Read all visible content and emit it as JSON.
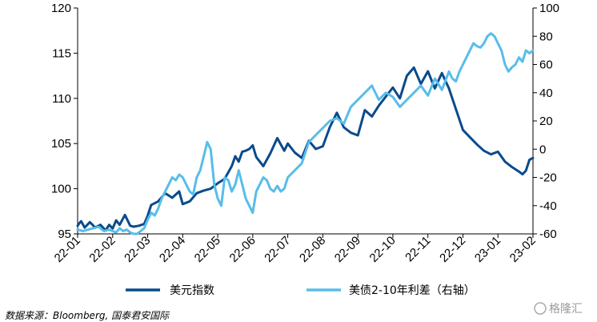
{
  "chart_data": {
    "type": "line",
    "categories": [
      "22-01",
      "22-02",
      "22-03",
      "22-04",
      "22-05",
      "22-06",
      "22-07",
      "22-08",
      "22-09",
      "22-10",
      "22-11",
      "22-12",
      "23-01",
      "23-02"
    ],
    "y_left": {
      "min": 95,
      "max": 120,
      "ticks": [
        "95",
        "100",
        "105",
        "110",
        "115",
        "120"
      ]
    },
    "y_right": {
      "min": -60,
      "max": 100,
      "ticks": [
        "-60",
        "-40",
        "-20",
        "0",
        "20",
        "40",
        "60",
        "80",
        "100"
      ]
    },
    "grid": false,
    "legend_position": "bottom",
    "series": [
      {
        "name": "美元指数",
        "axis": "left",
        "color": "#0b4a8c",
        "x": [
          0,
          0.05,
          0.1,
          0.2,
          0.35,
          0.5,
          0.65,
          0.8,
          0.9,
          1.0,
          1.1,
          1.2,
          1.35,
          1.5,
          1.6,
          1.75,
          1.9,
          2.0,
          2.1,
          2.3,
          2.5,
          2.7,
          2.9,
          3.0,
          3.2,
          3.4,
          3.6,
          3.8,
          4.0,
          4.2,
          4.4,
          4.5,
          4.6,
          4.7,
          4.8,
          4.9,
          5.0,
          5.1,
          5.3,
          5.5,
          5.7,
          5.9,
          6.0,
          6.2,
          6.4,
          6.6,
          6.8,
          7.0,
          7.2,
          7.4,
          7.6,
          7.8,
          8.0,
          8.2,
          8.4,
          8.6,
          8.8,
          9.0,
          9.2,
          9.4,
          9.6,
          9.8,
          10.0,
          10.2,
          10.4,
          10.6,
          10.8,
          11.0,
          11.2,
          11.4,
          11.6,
          11.8,
          12.0,
          12.2,
          12.4,
          12.6,
          12.7,
          12.8,
          12.9,
          13.0
        ],
        "values": [
          95.9,
          96.2,
          96.4,
          95.7,
          96.3,
          95.7,
          96.0,
          95.4,
          96.0,
          95.6,
          96.5,
          96.0,
          97.1,
          95.9,
          95.8,
          95.9,
          96.1,
          97.0,
          98.2,
          98.6,
          99.5,
          99.0,
          99.7,
          98.3,
          98.6,
          99.5,
          99.8,
          100.0,
          100.6,
          101.1,
          102.5,
          103.6,
          103.0,
          104.1,
          104.2,
          104.4,
          104.8,
          103.5,
          102.5,
          103.9,
          105.6,
          104.2,
          105.0,
          104.0,
          103.4,
          105.3,
          104.4,
          104.7,
          106.8,
          108.4,
          106.8,
          106.2,
          105.9,
          108.7,
          108.0,
          109.2,
          110.2,
          111.2,
          110.0,
          112.5,
          113.4,
          111.6,
          113.0,
          111.1,
          112.8,
          111.1,
          108.8,
          106.5,
          105.7,
          104.9,
          104.2,
          103.8,
          104.1,
          103.0,
          102.4,
          101.9,
          101.6,
          102.0,
          103.2,
          103.4
        ]
      },
      {
        "name": "美债2-10年利差（右轴）",
        "axis": "right",
        "color": "#58bde9",
        "x": [
          0,
          0.15,
          0.3,
          0.45,
          0.6,
          0.75,
          0.9,
          1.0,
          1.1,
          1.2,
          1.3,
          1.4,
          1.5,
          1.6,
          1.7,
          1.8,
          1.9,
          2.0,
          2.1,
          2.2,
          2.3,
          2.4,
          2.5,
          2.6,
          2.7,
          2.8,
          2.9,
          3.0,
          3.1,
          3.2,
          3.3,
          3.4,
          3.5,
          3.6,
          3.7,
          3.8,
          3.9,
          4.0,
          4.1,
          4.2,
          4.3,
          4.4,
          4.5,
          4.6,
          4.7,
          4.8,
          4.9,
          5.0,
          5.1,
          5.2,
          5.3,
          5.4,
          5.5,
          5.6,
          5.7,
          5.8,
          5.9,
          6.0,
          6.2,
          6.4,
          6.6,
          6.8,
          7.0,
          7.2,
          7.4,
          7.6,
          7.8,
          8.0,
          8.2,
          8.4,
          8.6,
          8.8,
          9.0,
          9.2,
          9.4,
          9.6,
          9.8,
          10.0,
          10.2,
          10.4,
          10.6,
          10.7,
          10.8,
          10.9,
          11.0,
          11.1,
          11.2,
          11.3,
          11.4,
          11.5,
          11.6,
          11.7,
          11.8,
          11.9,
          12.0,
          12.1,
          12.2,
          12.3,
          12.4,
          12.5,
          12.6,
          12.7,
          12.8,
          12.9,
          13.0
        ],
        "values": [
          -57,
          -58,
          -57,
          -56,
          -55,
          -58,
          -57,
          -58,
          -59,
          -56,
          -58,
          -57,
          -59,
          -60,
          -60,
          -58,
          -56,
          -50,
          -45,
          -47,
          -42,
          -35,
          -30,
          -25,
          -20,
          -22,
          -18,
          -20,
          -25,
          -30,
          -32,
          -20,
          -15,
          -5,
          5,
          0,
          -25,
          -35,
          -40,
          -20,
          -22,
          -30,
          -25,
          -15,
          -25,
          -35,
          -40,
          -45,
          -30,
          -25,
          -20,
          -22,
          -28,
          -30,
          -26,
          -30,
          -28,
          -20,
          -15,
          -10,
          5,
          10,
          15,
          20,
          22,
          18,
          30,
          35,
          40,
          45,
          35,
          40,
          37,
          30,
          35,
          40,
          45,
          38,
          50,
          42,
          55,
          50,
          48,
          55,
          60,
          65,
          70,
          75,
          73,
          72,
          75,
          80,
          82,
          80,
          75,
          70,
          60,
          55,
          58,
          60,
          65,
          62,
          70,
          68,
          70
        ]
      }
    ],
    "legend": {
      "items": [
        "美元指数",
        "美债2-10年利差（右轴）"
      ]
    },
    "source": "数据来源：Bloomberg, 国泰君安国际",
    "watermark": "格隆汇"
  }
}
